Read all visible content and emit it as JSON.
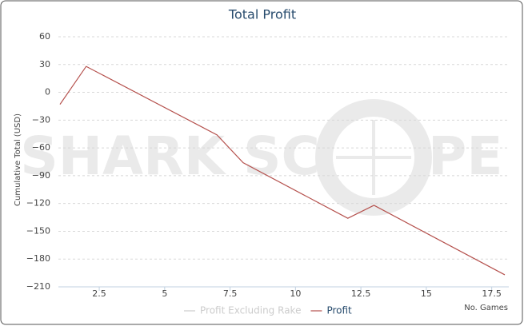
{
  "chart_data": {
    "type": "line",
    "title": "Total Profit",
    "y_label": "Cumulative Total (USD)",
    "x_label": "No. Games",
    "watermark": [
      "SHARK SC",
      "PE"
    ],
    "series": [
      {
        "name": "Profit Excluding Rake",
        "color": "#cccccc",
        "visible": false,
        "x": [],
        "values": []
      },
      {
        "name": "Profit",
        "color": "#b5514d",
        "visible": true,
        "x": [
          1,
          2,
          7,
          8,
          12,
          13,
          18
        ],
        "values": [
          -13,
          28,
          -46,
          -76,
          -136,
          -122,
          -197
        ]
      }
    ],
    "xlim": [
      1,
      18
    ],
    "xticks": [
      2.5,
      5,
      7.5,
      10,
      12.5,
      15,
      17.5
    ],
    "ylim": [
      -210,
      60
    ],
    "yticks": [
      60,
      30,
      0,
      {
        "value": -30,
        "label": "−30"
      },
      {
        "value": -60,
        "label": "−60"
      },
      {
        "value": -90,
        "label": "−90"
      },
      {
        "value": -120,
        "label": "−120"
      },
      {
        "value": -150,
        "label": "−150"
      },
      {
        "value": -180,
        "label": "−180"
      },
      {
        "value": -210,
        "label": "−210"
      }
    ],
    "grid": true
  }
}
